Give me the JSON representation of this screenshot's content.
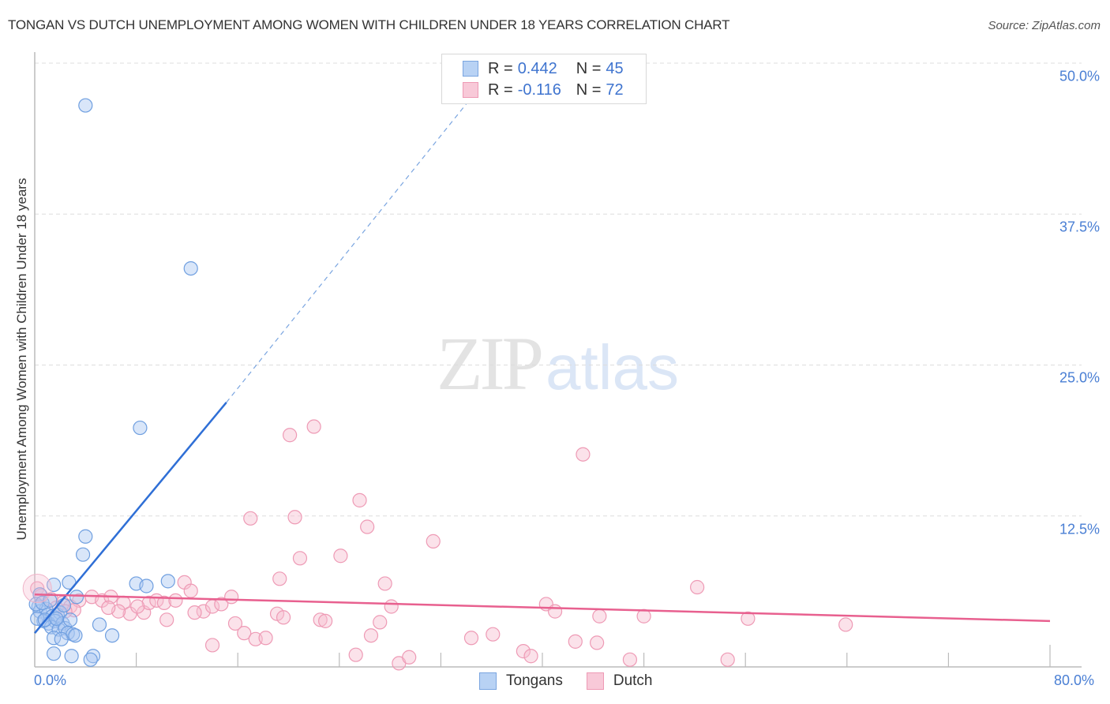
{
  "header": {
    "title": "TONGAN VS DUTCH UNEMPLOYMENT AMONG WOMEN WITH CHILDREN UNDER 18 YEARS CORRELATION CHART",
    "source": "Source: ZipAtlas.com"
  },
  "watermark": {
    "zip": "ZIP",
    "atlas": "atlas"
  },
  "legend": {
    "rows": [
      {
        "series": "Tongans",
        "r_label": "R =",
        "r_value": "0.442",
        "n_label": "N =",
        "n_value": "45",
        "color": "#b8d2f4"
      },
      {
        "series": "Dutch",
        "r_label": "R =",
        "r_value": "-0.116",
        "n_label": "N =",
        "n_value": "72",
        "color": "#f8c9d8"
      }
    ]
  },
  "bottom_legend": [
    {
      "label": "Tongans",
      "color": "#b8d2f4"
    },
    {
      "label": "Dutch",
      "color": "#f8c9d8"
    }
  ],
  "axes": {
    "ylabel": "Unemployment Among Women with Children Under 18 years",
    "y_ticks": [
      "50.0%",
      "37.5%",
      "25.0%",
      "12.5%"
    ],
    "x_ticks": [
      "0.0%",
      "80.0%"
    ]
  },
  "chart_data": {
    "type": "scatter",
    "title": "TONGAN VS DUTCH UNEMPLOYMENT AMONG WOMEN WITH CHILDREN UNDER 18 YEARS CORRELATION CHART",
    "xlabel": "",
    "ylabel": "Unemployment Among Women with Children Under 18 years",
    "xlim": [
      0,
      80
    ],
    "ylim": [
      0,
      50
    ],
    "x_tick_labels": [
      "0.0%",
      "80.0%"
    ],
    "y_tick_labels": [
      "12.5%",
      "25.0%",
      "37.5%",
      "50.0%"
    ],
    "grid": "horizontal dashed",
    "legend_position": "top-center and bottom",
    "series": [
      {
        "name": "Tongans",
        "color": "#6f9fe0",
        "R": 0.442,
        "N": 45,
        "trend": {
          "x": [
            0,
            15.1
          ],
          "y": [
            2.8,
            21.9
          ],
          "extended_dashed_to": [
            34.6,
            47.4
          ]
        },
        "points": [
          [
            4.0,
            46.5
          ],
          [
            12.3,
            33.0
          ],
          [
            8.3,
            19.8
          ],
          [
            4.0,
            10.8
          ],
          [
            3.8,
            9.3
          ],
          [
            2.7,
            7.0
          ],
          [
            1.5,
            6.8
          ],
          [
            8.0,
            6.9
          ],
          [
            8.8,
            6.7
          ],
          [
            10.5,
            7.1
          ],
          [
            3.3,
            5.8
          ],
          [
            0.4,
            6.0
          ],
          [
            0.3,
            5.0
          ],
          [
            0.4,
            4.6
          ],
          [
            0.9,
            4.8
          ],
          [
            1.0,
            4.3
          ],
          [
            1.4,
            4.2
          ],
          [
            1.8,
            4.3
          ],
          [
            2.0,
            4.5
          ],
          [
            0.7,
            3.8
          ],
          [
            1.1,
            3.6
          ],
          [
            1.6,
            3.8
          ],
          [
            2.2,
            3.6
          ],
          [
            1.3,
            3.3
          ],
          [
            1.9,
            3.1
          ],
          [
            2.4,
            3.2
          ],
          [
            2.6,
            2.8
          ],
          [
            3.0,
            2.7
          ],
          [
            3.2,
            2.6
          ],
          [
            1.5,
            2.4
          ],
          [
            2.1,
            2.3
          ],
          [
            5.1,
            3.5
          ],
          [
            6.1,
            2.6
          ],
          [
            1.5,
            1.1
          ],
          [
            2.9,
            0.9
          ],
          [
            4.6,
            0.9
          ],
          [
            4.4,
            0.6
          ],
          [
            0.1,
            5.2
          ],
          [
            0.6,
            5.3
          ],
          [
            1.2,
            5.5
          ],
          [
            2.3,
            5.1
          ],
          [
            0.2,
            4.0
          ],
          [
            0.8,
            3.9
          ],
          [
            1.7,
            4.0
          ],
          [
            2.8,
            3.9
          ]
        ]
      },
      {
        "name": "Dutch",
        "color": "#ee8fb0",
        "R": -0.116,
        "N": 72,
        "trend": {
          "x": [
            0,
            80
          ],
          "y": [
            6.0,
            3.8
          ]
        },
        "points": [
          [
            0.2,
            6.5
          ],
          [
            1.3,
            5.6
          ],
          [
            2.2,
            5.3
          ],
          [
            2.8,
            5.0
          ],
          [
            3.5,
            5.5
          ],
          [
            4.5,
            5.8
          ],
          [
            5.3,
            5.5
          ],
          [
            6.0,
            5.8
          ],
          [
            7.0,
            5.3
          ],
          [
            7.5,
            4.4
          ],
          [
            8.6,
            4.5
          ],
          [
            9.0,
            5.3
          ],
          [
            9.6,
            5.5
          ],
          [
            10.2,
            5.3
          ],
          [
            11.1,
            5.5
          ],
          [
            11.8,
            7.0
          ],
          [
            12.3,
            6.3
          ],
          [
            13.3,
            4.6
          ],
          [
            14.0,
            5.0
          ],
          [
            14.7,
            5.2
          ],
          [
            15.5,
            5.8
          ],
          [
            10.4,
            3.9
          ],
          [
            14.0,
            1.8
          ],
          [
            15.8,
            3.6
          ],
          [
            16.5,
            2.8
          ],
          [
            17.4,
            2.3
          ],
          [
            18.2,
            2.4
          ],
          [
            17.0,
            12.3
          ],
          [
            19.1,
            4.4
          ],
          [
            19.6,
            4.1
          ],
          [
            19.3,
            7.3
          ],
          [
            20.1,
            19.2
          ],
          [
            22.0,
            19.9
          ],
          [
            20.5,
            12.4
          ],
          [
            20.9,
            9.0
          ],
          [
            22.5,
            3.9
          ],
          [
            22.9,
            3.8
          ],
          [
            24.1,
            9.2
          ],
          [
            25.3,
            1.0
          ],
          [
            25.6,
            13.8
          ],
          [
            26.2,
            11.6
          ],
          [
            26.5,
            2.6
          ],
          [
            27.2,
            3.7
          ],
          [
            27.6,
            6.9
          ],
          [
            28.1,
            5.0
          ],
          [
            28.7,
            0.3
          ],
          [
            29.5,
            0.8
          ],
          [
            31.4,
            10.4
          ],
          [
            34.4,
            2.4
          ],
          [
            36.1,
            2.7
          ],
          [
            38.5,
            1.3
          ],
          [
            39.1,
            0.9
          ],
          [
            40.3,
            5.2
          ],
          [
            41.0,
            4.6
          ],
          [
            42.6,
            2.1
          ],
          [
            43.2,
            17.6
          ],
          [
            44.3,
            2.0
          ],
          [
            44.5,
            4.2
          ],
          [
            46.9,
            0.6
          ],
          [
            48.0,
            4.2
          ],
          [
            52.2,
            6.6
          ],
          [
            54.6,
            0.6
          ],
          [
            56.2,
            4.0
          ],
          [
            63.9,
            3.5
          ],
          [
            0.5,
            5.9
          ],
          [
            1.7,
            4.9
          ],
          [
            3.1,
            4.7
          ],
          [
            6.6,
            4.6
          ],
          [
            8.1,
            5.0
          ],
          [
            12.6,
            4.5
          ],
          [
            5.8,
            4.9
          ],
          [
            2.4,
            4.6
          ]
        ]
      }
    ]
  }
}
